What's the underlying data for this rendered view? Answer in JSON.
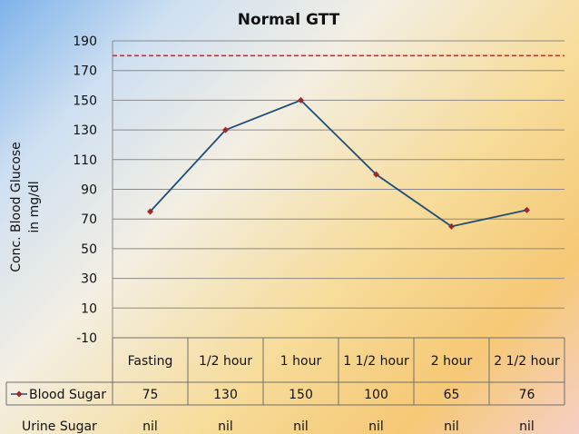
{
  "chart_data": {
    "type": "line",
    "title": "Normal GTT",
    "ylabel_lines": [
      "Conc. Blood Glucose",
      "in mg/dl"
    ],
    "xlabel": "",
    "ylim": [
      -10,
      190
    ],
    "y_ticks": [
      -10,
      10,
      30,
      50,
      70,
      90,
      110,
      130,
      150,
      170,
      190
    ],
    "grid": true,
    "categories": [
      "Fasting",
      "1/2 hour",
      "1 hour",
      "1 1/2 hour",
      "2 hour",
      "2 1/2 hour"
    ],
    "series": [
      {
        "name": "Blood Sugar",
        "values": [
          75,
          130,
          150,
          100,
          65,
          76
        ],
        "color": "#1f4e79",
        "marker_color": "#a0282d"
      }
    ],
    "reference_line": {
      "value": 180,
      "color": "#e0262b",
      "style": "dashed"
    },
    "table_rows": [
      {
        "label": "Blood Sugar",
        "values": [
          "75",
          "130",
          "150",
          "100",
          "65",
          "76"
        ]
      },
      {
        "label": "Urine Sugar",
        "values": [
          "nil",
          "nil",
          "nil",
          "nil",
          "nil",
          "nil"
        ]
      }
    ]
  }
}
